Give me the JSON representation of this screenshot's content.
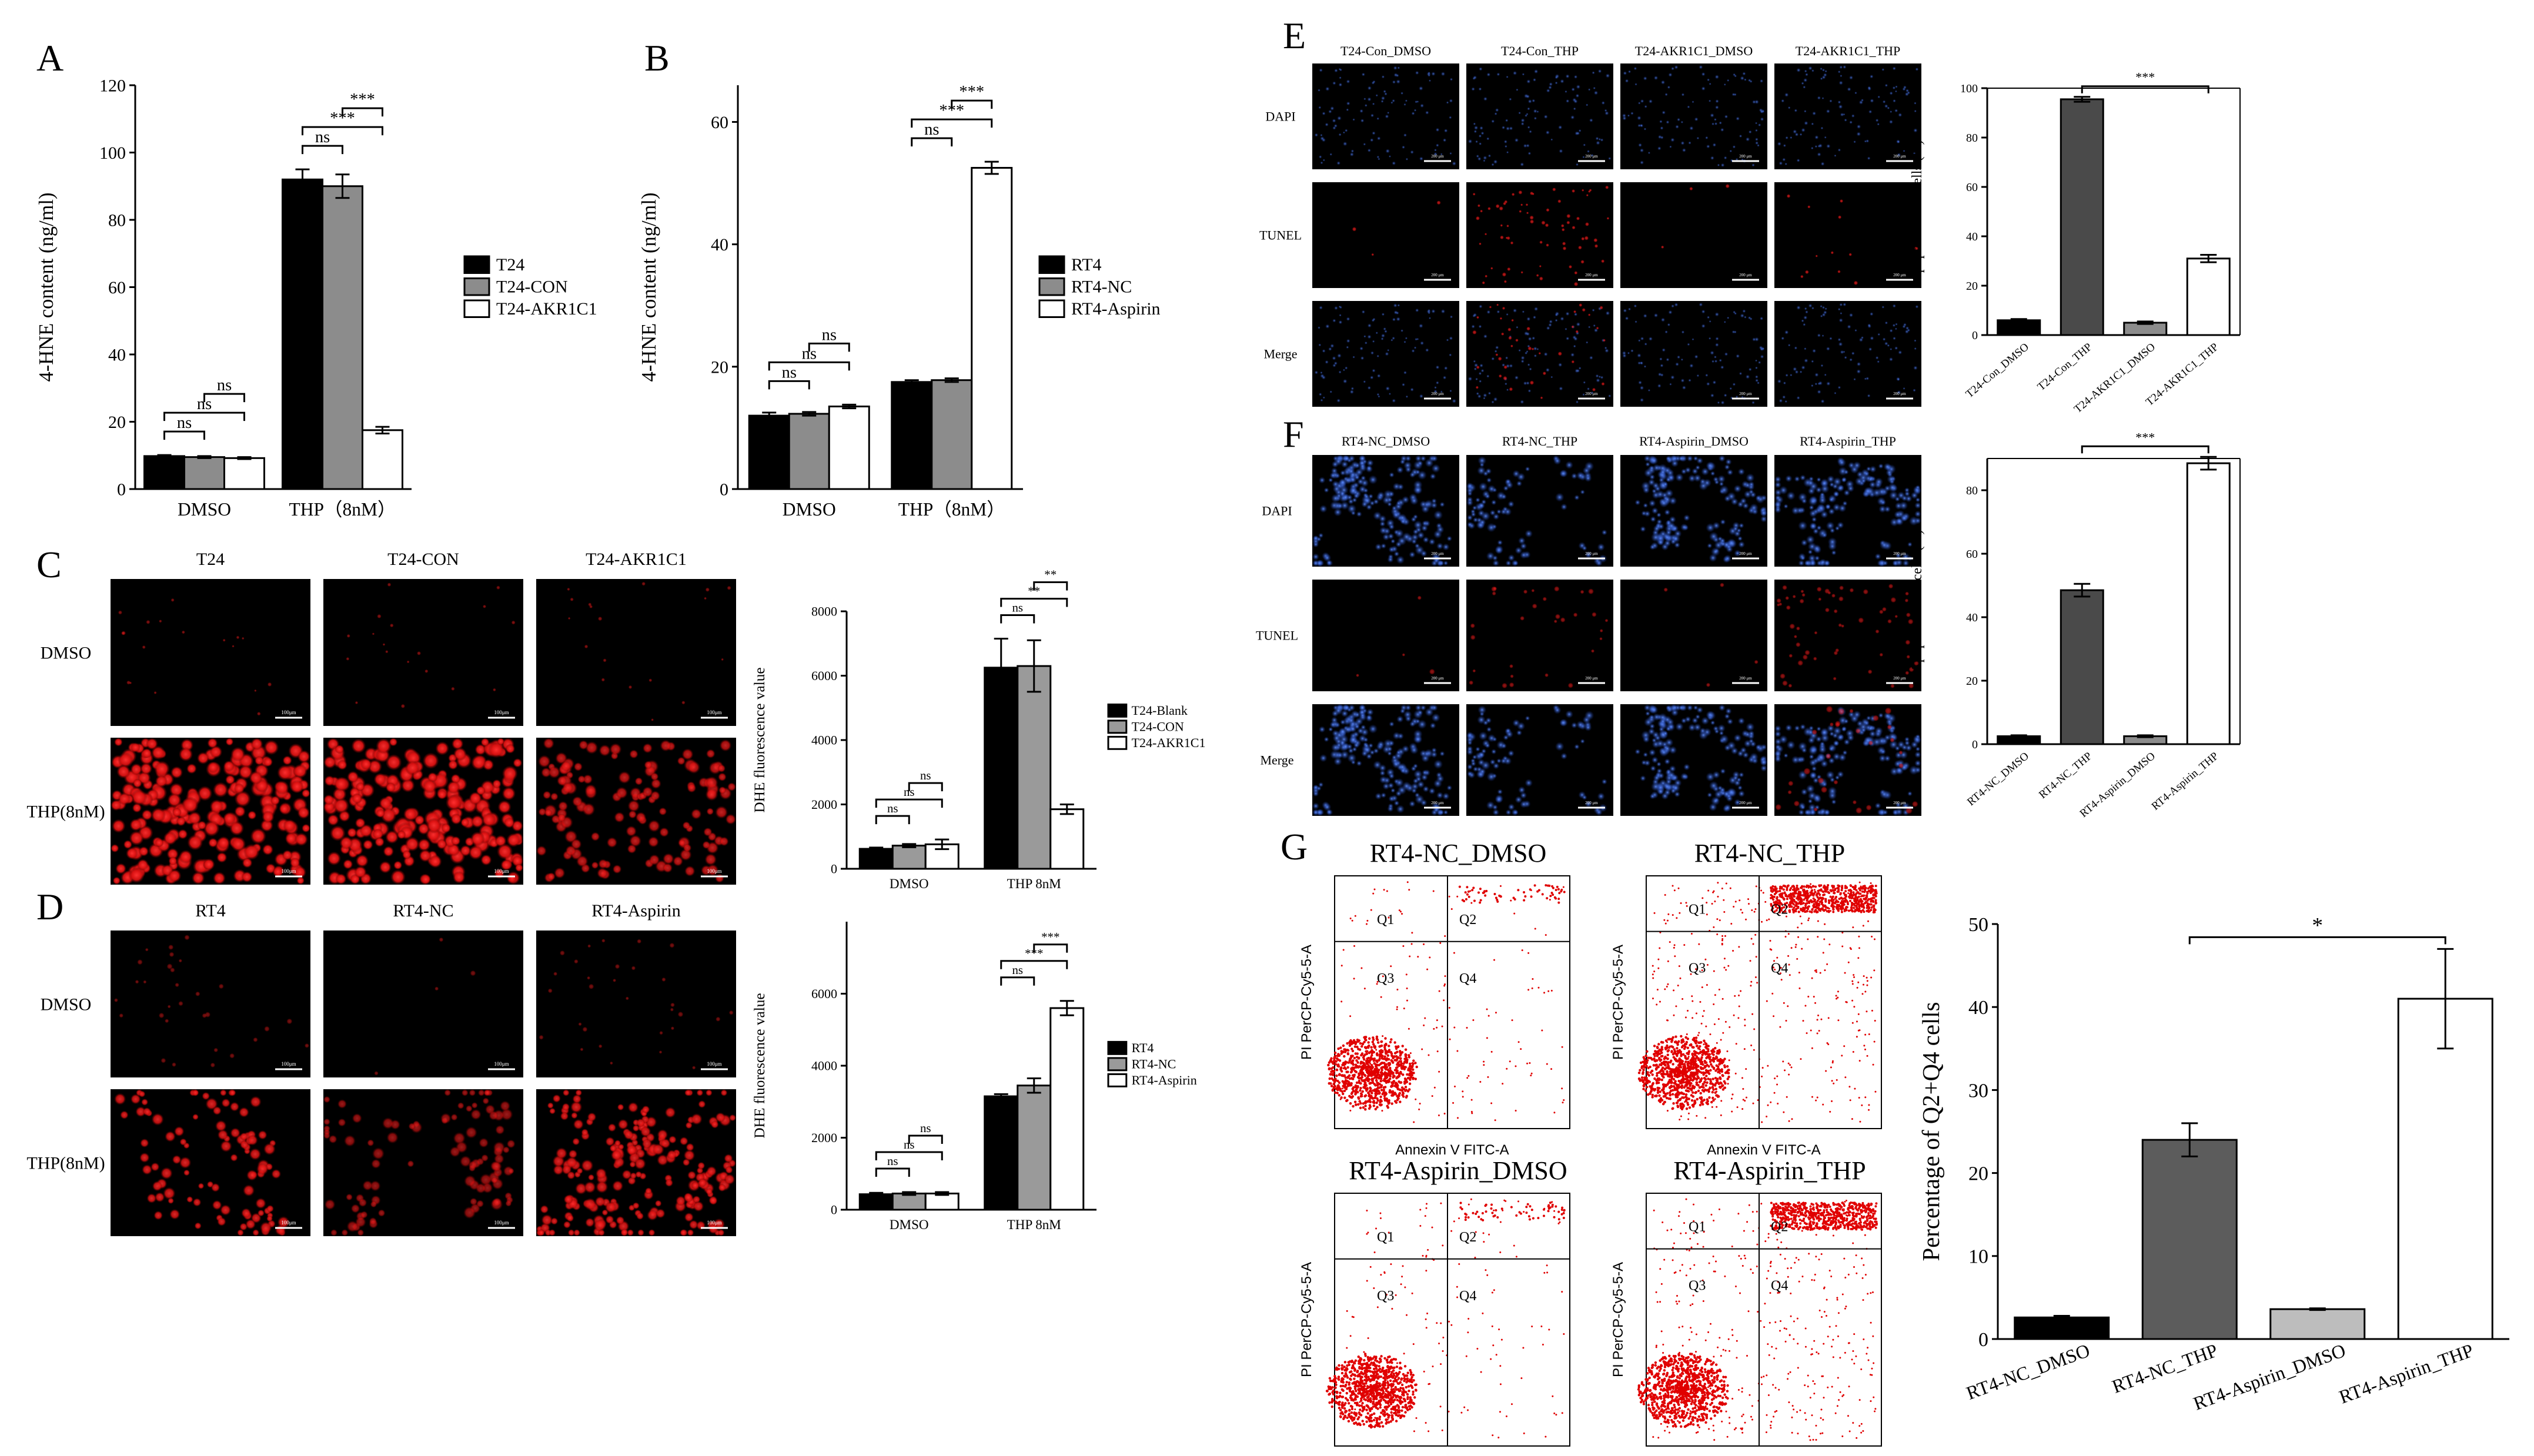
{
  "panel_letters": [
    "A",
    "B",
    "C",
    "D",
    "E",
    "F",
    "G"
  ],
  "chart_data": [
    {
      "id": "A",
      "type": "bar",
      "ylabel": "4-HNE content (ng/ml)",
      "ylim": [
        0,
        120
      ],
      "yticks": [
        0,
        20,
        40,
        60,
        80,
        100,
        120
      ],
      "categories": [
        "DMSO",
        "THP（8nM）"
      ],
      "series": [
        {
          "name": "T24",
          "color": "#000000",
          "values": [
            9.8,
            92
          ],
          "err": [
            0.3,
            3
          ]
        },
        {
          "name": "T24-CON",
          "color": "#8c8c8c",
          "values": [
            9.5,
            90
          ],
          "err": [
            0.3,
            3.5
          ]
        },
        {
          "name": "T24-AKR1C1",
          "color": "#ffffff",
          "values": [
            9.2,
            17.5
          ],
          "err": [
            0.3,
            1
          ]
        }
      ],
      "sig_dmso": [
        "ns",
        "ns",
        "ns"
      ],
      "sig_thp": [
        "ns",
        "***",
        "***"
      ]
    },
    {
      "id": "B",
      "type": "bar",
      "ylabel": "4-HNE content (ng/ml)",
      "ylim": [
        0,
        66
      ],
      "yticks": [
        0,
        20,
        40,
        60
      ],
      "categories": [
        "DMSO",
        "THP（8nM）"
      ],
      "series": [
        {
          "name": "RT4",
          "color": "#000000",
          "values": [
            12,
            17.5
          ],
          "err": [
            0.5,
            0.3
          ]
        },
        {
          "name": "RT4-NC",
          "color": "#8c8c8c",
          "values": [
            12.3,
            17.8
          ],
          "err": [
            0.3,
            0.3
          ]
        },
        {
          "name": "RT4-Aspirin",
          "color": "#ffffff",
          "values": [
            13.5,
            52.5
          ],
          "err": [
            0.3,
            1
          ]
        }
      ],
      "sig_dmso": [
        "ns",
        "ns",
        "ns"
      ],
      "sig_thp": [
        "ns",
        "***",
        "***"
      ]
    },
    {
      "id": "C",
      "type": "bar",
      "ylabel": "DHE fluorescence value",
      "ylim": [
        0,
        8000
      ],
      "yticks": [
        0,
        2000,
        4000,
        6000,
        8000
      ],
      "categories": [
        "DMSO",
        "THP 8nM"
      ],
      "series": [
        {
          "name": "T24-Blank",
          "color": "#000000",
          "values": [
            620,
            6250
          ],
          "err": [
            40,
            900
          ]
        },
        {
          "name": "T24-CON",
          "color": "#9a9a9a",
          "values": [
            720,
            6300
          ],
          "err": [
            50,
            800
          ]
        },
        {
          "name": "T24-AKR1C1",
          "color": "#ffffff",
          "values": [
            760,
            1850
          ],
          "err": [
            150,
            150
          ]
        }
      ],
      "sig_dmso": [
        "ns",
        "ns",
        "ns"
      ],
      "sig_thp": [
        "ns",
        "**",
        "**"
      ]
    },
    {
      "id": "D",
      "type": "bar",
      "ylabel": "DHE fluorescence value",
      "ylim": [
        0,
        8000
      ],
      "yticks": [
        0,
        2000,
        4000,
        6000
      ],
      "categories": [
        "DMSO",
        "THP 8nM"
      ],
      "series": [
        {
          "name": "RT4",
          "color": "#000000",
          "values": [
            430,
            3150
          ],
          "err": [
            40,
            60
          ]
        },
        {
          "name": "RT4-NC",
          "color": "#9a9a9a",
          "values": [
            450,
            3450
          ],
          "err": [
            40,
            200
          ]
        },
        {
          "name": "RT4-Aspirin",
          "color": "#ffffff",
          "values": [
            450,
            5600
          ],
          "err": [
            40,
            200
          ]
        }
      ],
      "sig_dmso": [
        "ns",
        "ns",
        "ns"
      ],
      "sig_thp": [
        "ns",
        "***",
        "***"
      ]
    },
    {
      "id": "E",
      "type": "bar",
      "ylabel": "Apoptotic/ total cells (%)",
      "ylim": [
        0,
        100
      ],
      "yticks": [
        0,
        20,
        40,
        60,
        80,
        100
      ],
      "categories": [
        "T24-Con_DMSO",
        "T24-Con_THP",
        "T24-AKR1C1_DMSO",
        "T24-AKR1C1_THP"
      ],
      "values": [
        6,
        95.5,
        5,
        31
      ],
      "err": [
        0.5,
        1,
        0.5,
        1.5
      ],
      "colors": [
        "#000000",
        "#4a4a4a",
        "#8c8c8c",
        "#ffffff"
      ],
      "sig": "***"
    },
    {
      "id": "F",
      "type": "bar",
      "ylabel": "Apoptotic/ total cells (%)",
      "ylim": [
        0,
        90
      ],
      "yticks": [
        0,
        20,
        40,
        60,
        80
      ],
      "categories": [
        "RT4-NC_DMSO",
        "RT4-NC_THP",
        "RT4-Aspirin_DMSO",
        "RT4-Aspirin_THP"
      ],
      "values": [
        2.5,
        48.5,
        2.5,
        88.5
      ],
      "err": [
        0.3,
        2,
        0.3,
        2
      ],
      "colors": [
        "#000000",
        "#4a4a4a",
        "#8c8c8c",
        "#ffffff"
      ],
      "sig": "***"
    },
    {
      "id": "G",
      "type": "bar",
      "ylabel": "Percentage of Q2+Q4 cells",
      "ylim": [
        0,
        50
      ],
      "yticks": [
        0,
        10,
        20,
        30,
        40,
        50
      ],
      "categories": [
        "RT4-NC_DMSO",
        "RT4-NC_THP",
        "RT4-Aspirin_DMSO",
        "RT4-Aspirin_THP"
      ],
      "values": [
        2.6,
        24,
        3.6,
        41
      ],
      "err": [
        0.2,
        2,
        0.1,
        6
      ],
      "colors": [
        "#000000",
        "#5c5c5c",
        "#bdbdbd",
        "#ffffff"
      ],
      "sig": "*"
    }
  ],
  "panelC": {
    "cols": [
      "T24",
      "T24-CON",
      "T24-AKR1C1"
    ],
    "rows": [
      "DMSO",
      "THP(8nM)"
    ],
    "scale": "100μm"
  },
  "panelD": {
    "cols": [
      "RT4",
      "RT4-NC",
      "RT4-Aspirin"
    ],
    "rows": [
      "DMSO",
      "THP(8nM)"
    ],
    "scale": "100μm"
  },
  "panelE": {
    "cols": [
      "T24-Con_DMSO",
      "T24-Con_THP",
      "T24-AKR1C1_DMSO",
      "T24-AKR1C1_THP"
    ],
    "rows": [
      "DAPI",
      "TUNEL",
      "Merge"
    ],
    "scale": "200 μm"
  },
  "panelF": {
    "cols": [
      "RT4-NC_DMSO",
      "RT4-NC_THP",
      "RT4-Aspirin_DMSO",
      "RT4-Aspirin_THP"
    ],
    "rows": [
      "DAPI",
      "TUNEL",
      "Merge"
    ],
    "scale": "200 μm"
  },
  "panelG_flow": {
    "titles": [
      "RT4-NC_DMSO",
      "RT4-NC_THP",
      "RT4-Aspirin_DMSO",
      "RT4-Aspirin_THP"
    ],
    "xlabel": "Annexin V FITC-A",
    "ylabel": "PI PerCP-Cy5-5-A",
    "quadrants": [
      "Q1",
      "Q2",
      "Q3",
      "Q4"
    ]
  }
}
